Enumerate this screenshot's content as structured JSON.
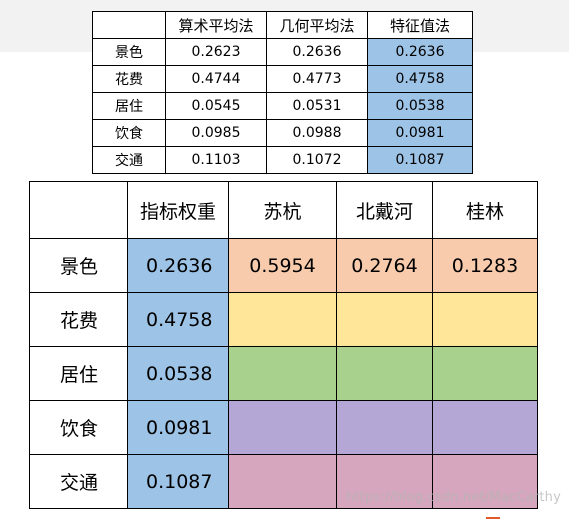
{
  "colors": {
    "blue": "#9dc3e6",
    "orange": "#f8cbad",
    "yellow": "#ffe699",
    "green": "#a9d18e",
    "purple": "#b4a7d6",
    "pink": "#d5a6bd"
  },
  "small_table": {
    "headers": [
      "",
      "算术平均法",
      "几何平均法",
      "特征值法"
    ],
    "rows": [
      {
        "label": "景色",
        "values": [
          "0.2623",
          "0.2636",
          "0.2636"
        ]
      },
      {
        "label": "花费",
        "values": [
          "0.4744",
          "0.4773",
          "0.4758"
        ]
      },
      {
        "label": "居住",
        "values": [
          "0.0545",
          "0.0531",
          "0.0538"
        ]
      },
      {
        "label": "饮食",
        "values": [
          "0.0985",
          "0.0988",
          "0.0981"
        ]
      },
      {
        "label": "交通",
        "values": [
          "0.1103",
          "0.1072",
          "0.1087"
        ]
      }
    ]
  },
  "big_table": {
    "headers": [
      "",
      "指标权重",
      "苏杭",
      "北戴河",
      "桂林"
    ],
    "rows": [
      {
        "label": "景色",
        "weight": "0.2636",
        "cities": [
          "0.5954",
          "0.2764",
          "0.1283"
        ],
        "row_color": "orange"
      },
      {
        "label": "花费",
        "weight": "0.4758",
        "cities": [
          "",
          "",
          ""
        ],
        "row_color": "yellow"
      },
      {
        "label": "居住",
        "weight": "0.0538",
        "cities": [
          "",
          "",
          ""
        ],
        "row_color": "green"
      },
      {
        "label": "饮食",
        "weight": "0.0981",
        "cities": [
          "",
          "",
          ""
        ],
        "row_color": "purple"
      },
      {
        "label": "交通",
        "weight": "0.1087",
        "cities": [
          "",
          "",
          ""
        ],
        "row_color": "pink"
      }
    ]
  },
  "watermark": "https://blog.csdn.net/MacCarthy"
}
